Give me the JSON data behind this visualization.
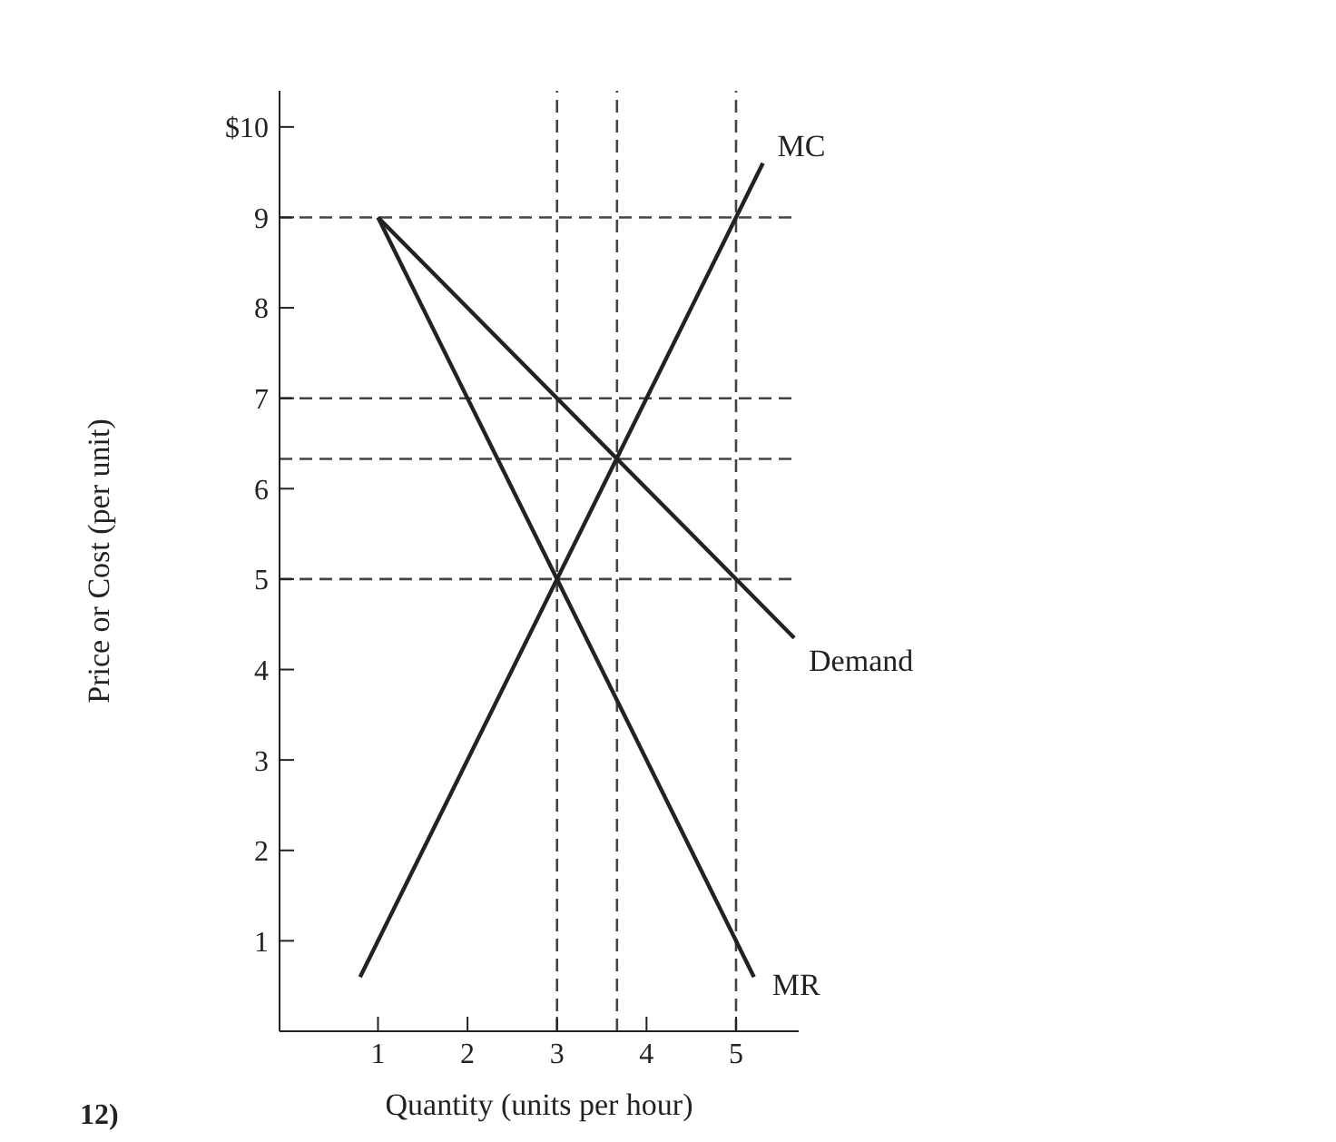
{
  "chart_data": {
    "type": "line",
    "xlabel": "Quantity (units per hour)",
    "ylabel": "Price or Cost (per unit)",
    "xlim": [
      -0.1,
      5.7
    ],
    "xticks": [
      1,
      2,
      3,
      4,
      5
    ],
    "ylim": [
      0,
      10.4
    ],
    "yticks": [
      1,
      2,
      3,
      4,
      5,
      6,
      7,
      8,
      9,
      {
        "value": 10,
        "label": "$10"
      }
    ],
    "series": [
      {
        "name": "MC",
        "color": "#222222",
        "x": [
          0.8,
          5.3
        ],
        "values": [
          0.6,
          9.6
        ]
      },
      {
        "name": "Demand",
        "color": "#222222",
        "x": [
          1,
          5.65
        ],
        "values": [
          9,
          4.35
        ]
      },
      {
        "name": "MR",
        "color": "#222222",
        "x": [
          1,
          5.2
        ],
        "values": [
          9,
          0.6
        ]
      }
    ],
    "ref_lines": [
      {
        "axis": "y",
        "value": 9,
        "line_style": "dashed",
        "color": "#444444"
      },
      {
        "axis": "y",
        "value": 7,
        "line_style": "dashed",
        "color": "#444444"
      },
      {
        "axis": "y",
        "value": 6.33,
        "line_style": "dashed",
        "color": "#444444"
      },
      {
        "axis": "y",
        "value": 5,
        "line_style": "dashed",
        "color": "#444444"
      },
      {
        "axis": "x",
        "value": 3,
        "line_style": "dashed",
        "color": "#444444"
      },
      {
        "axis": "x",
        "value": 3.67,
        "line_style": "dashed",
        "color": "#444444"
      },
      {
        "axis": "x",
        "value": 5,
        "line_style": "dashed",
        "color": "#444444"
      }
    ],
    "annotations": [
      "12)"
    ],
    "grid": false,
    "legend": false,
    "marker": "none",
    "line_style": "solid"
  }
}
